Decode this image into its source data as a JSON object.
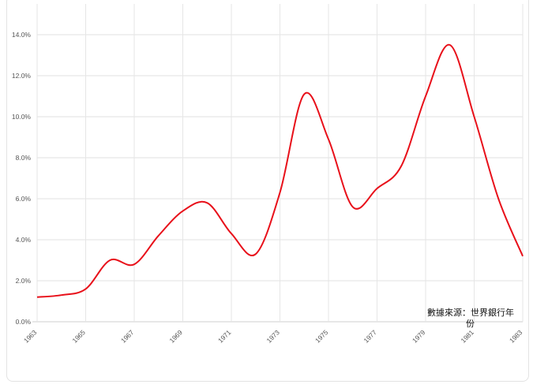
{
  "chart_data": {
    "type": "line",
    "x": [
      1963,
      1964,
      1965,
      1966,
      1967,
      1968,
      1969,
      1970,
      1971,
      1972,
      1973,
      1974,
      1975,
      1976,
      1977,
      1978,
      1979,
      1980,
      1981,
      1982,
      1983
    ],
    "series": [
      {
        "values": [
          1.2,
          1.3,
          1.6,
          3.0,
          2.8,
          4.2,
          5.4,
          5.8,
          4.3,
          3.3,
          6.3,
          11.1,
          8.9,
          5.6,
          6.5,
          7.6,
          11.0,
          13.5,
          10.0,
          6.0,
          3.2
        ],
        "color": "#e8101a"
      }
    ],
    "y_ticks": [
      0,
      2,
      4,
      6,
      8,
      10,
      12,
      14
    ],
    "y_tick_labels": [
      "0.0%",
      "2.0%",
      "4.0%",
      "6.0%",
      "8.0%",
      "10.0%",
      "12.0%",
      "14.0%"
    ],
    "x_ticks": [
      "1963",
      "1965",
      "1967",
      "1969",
      "1971",
      "1973",
      "1975",
      "1977",
      "1979",
      "1981",
      "1983"
    ],
    "ylim": [
      0,
      15.5
    ],
    "xlim": [
      1963,
      1983
    ],
    "grid": true,
    "annotation": "數據來源：世界銀行年份"
  }
}
